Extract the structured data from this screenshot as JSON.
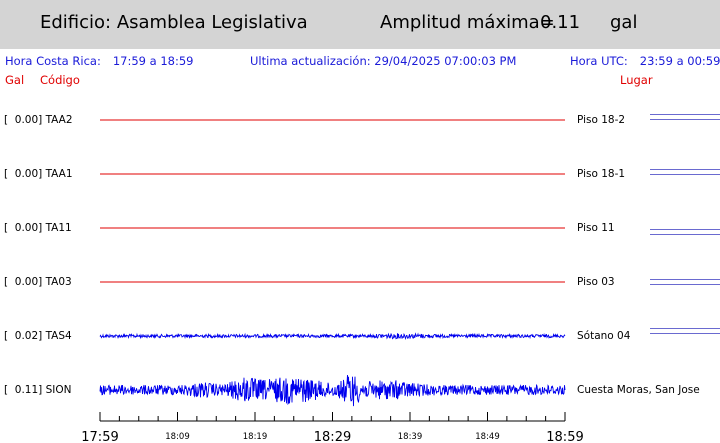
{
  "header": {
    "building_label": "Edificio: Asamblea Legislativa",
    "amplitude_label": "Amplitud máxima=",
    "amplitude_value": "0.11",
    "amplitude_unit": "gal"
  },
  "info": {
    "local_label": "Hora Costa Rica:",
    "local_range": "17:59 a 18:59",
    "update_label": "Ultima actualización:",
    "update_value": "29/04/2025 07:00:03 PM",
    "utc_label": "Hora UTC:",
    "utc_range": "23:59 a 00:59"
  },
  "columns": {
    "gal": "Gal",
    "code": "Código",
    "place": "Lugar"
  },
  "colors": {
    "flat_trace": "#e00000",
    "active_trace": "#0000ee",
    "legend": "#6a6ad0",
    "info_text": "#1a1ad8",
    "header_bg": "#d4d4d4"
  },
  "chart_data": {
    "type": "line",
    "x_range_minutes": [
      0,
      60
    ],
    "series": [
      {
        "label": "[  0.00] TAA2",
        "gal": 0.0,
        "code": "TAA2",
        "place": "Piso 18-2",
        "activity": "flat"
      },
      {
        "label": "[  0.00] TAA1",
        "gal": 0.0,
        "code": "TAA1",
        "place": "Piso 18-1",
        "activity": "flat"
      },
      {
        "label": "[  0.00] TA11",
        "gal": 0.0,
        "code": "TA11",
        "place": "Piso 11",
        "activity": "flat"
      },
      {
        "label": "[  0.00] TA03",
        "gal": 0.0,
        "code": "TA03",
        "place": "Piso 03",
        "activity": "flat"
      },
      {
        "label": "[  0.02] TAS4",
        "gal": 0.02,
        "code": "TAS4",
        "place": "Sótano 04",
        "activity": "low"
      },
      {
        "label": "[  0.11] SION",
        "gal": 0.11,
        "code": "SION",
        "place": "Cuesta Moras, San Jose",
        "activity": "high"
      }
    ],
    "ticks": [
      {
        "label": "17:59",
        "minute": 0,
        "major": true
      },
      {
        "label": "18:09",
        "minute": 10,
        "major": false
      },
      {
        "label": "18:19",
        "minute": 20,
        "major": false
      },
      {
        "label": "18:29",
        "minute": 30,
        "major": true
      },
      {
        "label": "18:39",
        "minute": 40,
        "major": false
      },
      {
        "label": "18:49",
        "minute": 50,
        "major": false
      },
      {
        "label": "18:59",
        "minute": 60,
        "major": true
      }
    ]
  }
}
